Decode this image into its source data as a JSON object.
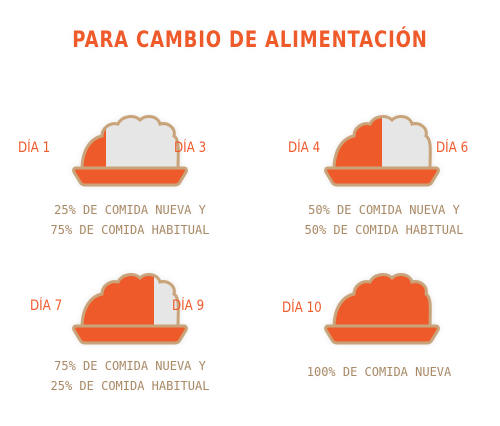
{
  "title": "PARA CAMBIO DE ALIMENTACIÓN",
  "colors": {
    "new_food": "#ef5a2a",
    "old_food": "#e6e6e6",
    "outline": "#c9a47a",
    "caption": "#a98a66"
  },
  "panels": [
    {
      "start_day": "DÍA 1",
      "end_day": "DÍA 3",
      "new_food_fraction": 0.25,
      "caption_lines": [
        "25% DE COMIDA NUEVA Y",
        "75% DE COMIDA HABITUAL"
      ]
    },
    {
      "start_day": "DÍA 4",
      "end_day": "DÍA 6",
      "new_food_fraction": 0.5,
      "caption_lines": [
        "50% DE COMIDA NUEVA Y",
        "50% DE COMIDA HABITUAL"
      ]
    },
    {
      "start_day": "DÍA 7",
      "end_day": "DÍA 9",
      "new_food_fraction": 0.75,
      "caption_lines": [
        "75% DE COMIDA NUEVA Y",
        "25% DE COMIDA HABITUAL"
      ]
    },
    {
      "start_day": "DÍA 10",
      "end_day": "",
      "new_food_fraction": 1.0,
      "caption_lines": [
        "100% DE COMIDA NUEVA"
      ]
    }
  ]
}
